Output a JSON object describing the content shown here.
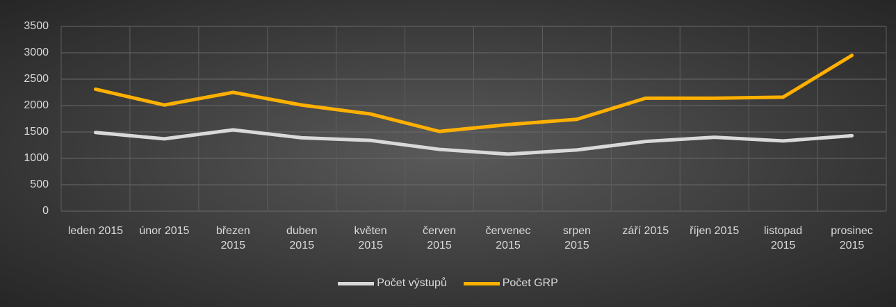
{
  "chart_data": {
    "type": "line",
    "categories": [
      "leden 2015",
      "únor 2015",
      "březen 2015",
      "duben 2015",
      "květen 2015",
      "červen 2015",
      "červenec 2015",
      "srpen 2015",
      "září 2015",
      "říjen 2015",
      "listopad 2015",
      "prosinec 2015"
    ],
    "series": [
      {
        "name": "Počet výstupů",
        "color": "#d9d9d9",
        "values": [
          1490,
          1370,
          1540,
          1390,
          1340,
          1170,
          1080,
          1160,
          1320,
          1400,
          1330,
          1430
        ]
      },
      {
        "name": "Počet GRP",
        "color": "#ffb000",
        "values": [
          2310,
          2010,
          2250,
          2010,
          1840,
          1510,
          1640,
          1740,
          2140,
          2140,
          2160,
          2950
        ]
      }
    ],
    "ylim": [
      0,
      3500
    ],
    "yticks": [
      0,
      500,
      1000,
      1500,
      2000,
      2500,
      3000,
      3500
    ],
    "grid": true,
    "legend": "bottom"
  }
}
